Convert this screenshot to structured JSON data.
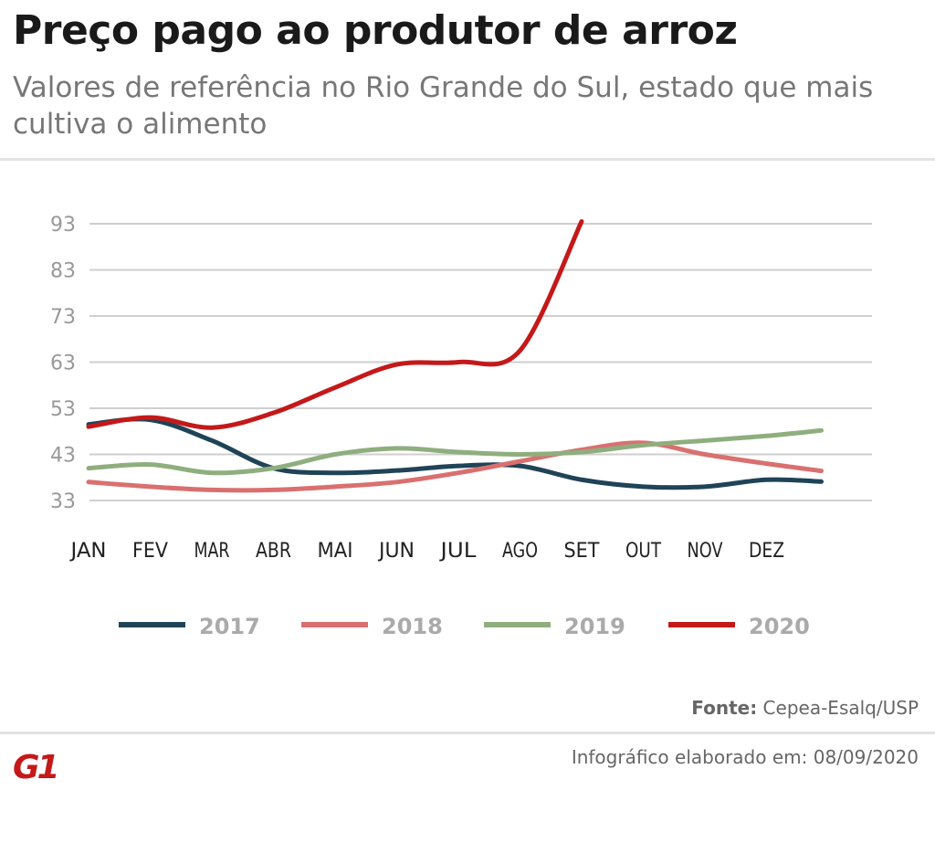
{
  "header": {
    "title": "Preço pago ao produtor de arroz",
    "subtitle": " Valores de referência no Rio Grande do Sul, estado que mais cultiva o alimento"
  },
  "footer": {
    "source_label": "Fonte:",
    "source": " Cepea-Esalq/USP",
    "credit": "Infográfico elaborado em: 08/09/2020",
    "logo": "G1"
  },
  "chart_data": {
    "type": "line",
    "categories": [
      "JAN",
      "FEV",
      "MAR",
      "ABR",
      "MAI",
      "JUN",
      "JUL",
      "AGO",
      "SET",
      "OUT",
      "NOV",
      "DEZ"
    ],
    "yticks": [
      33,
      43,
      53,
      63,
      73,
      83,
      93
    ],
    "ylim": [
      33,
      93
    ],
    "grid": true,
    "legend": "bottom",
    "series": [
      {
        "name": "2017",
        "color": "#1f4357",
        "values": [
          49.5,
          50.5,
          46,
          40,
          39,
          39.5,
          40.5,
          40.5,
          37.5,
          36,
          36,
          37.5
        ]
      },
      {
        "name": "2018",
        "color": "#d9706f",
        "values": [
          37,
          36,
          35.3,
          35.3,
          36,
          37,
          39,
          41.5,
          44,
          45.5,
          43,
          41
        ]
      },
      {
        "name": "2019",
        "color": "#8fae7e",
        "values": [
          40,
          40.8,
          39,
          40,
          43,
          44.3,
          43.5,
          43,
          43.5,
          45,
          46,
          47
        ]
      },
      {
        "name": "2020",
        "color": "#c4191a",
        "values": [
          49,
          51,
          48.8,
          52,
          57.5,
          62.5,
          63,
          65.5,
          93.5,
          null,
          null,
          null
        ]
      }
    ]
  }
}
